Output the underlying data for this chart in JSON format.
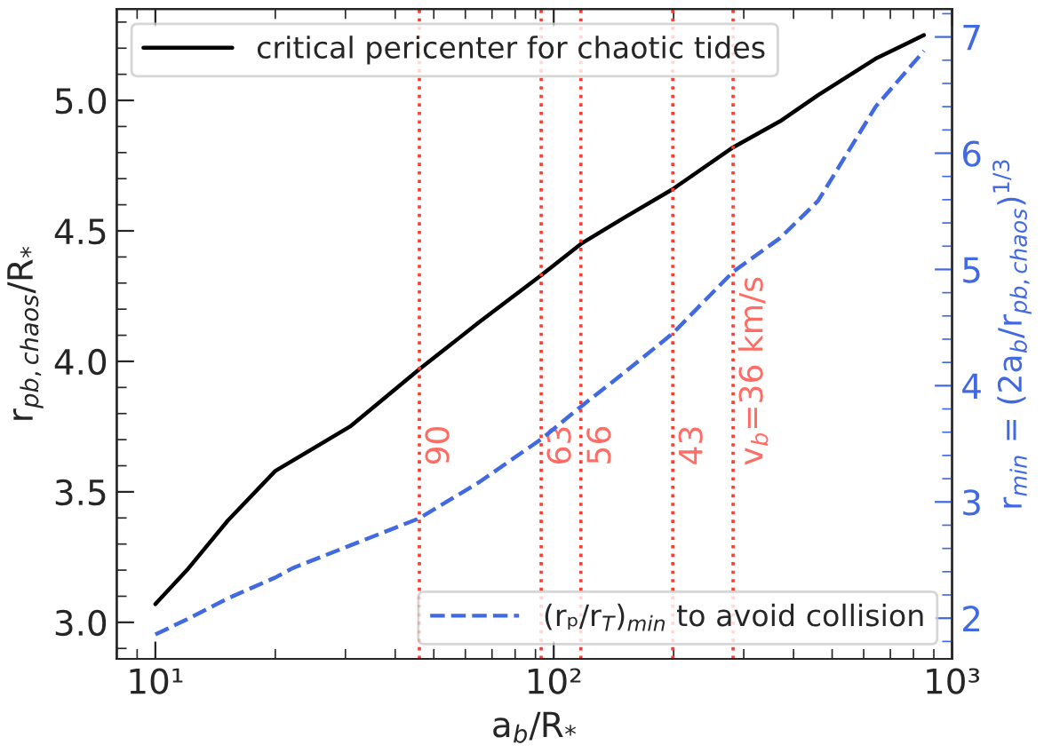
{
  "chart_data": {
    "type": "line",
    "xlabel": "a$_{b}$/R$_{*}$",
    "ylabel": "r$_{pb,chaos}$/R$_{*}$",
    "y2label": "r$_{min}$ = (2a$_{b}$/r$_{pb,chaos}$)$^{1/3}$",
    "log": "x",
    "xlim": [
      8,
      1000
    ],
    "xticks": [
      {
        "value": 10,
        "label": "10¹"
      },
      {
        "value": 100,
        "label": "10²"
      },
      {
        "value": 1000,
        "label": "10³"
      }
    ],
    "ylim": [
      2.86,
      5.35
    ],
    "yticks": [
      {
        "value": 3.0,
        "label": "3.0"
      },
      3.5,
      {
        "value": 4.0,
        "label": "4.0"
      },
      4.5,
      {
        "value": 5.0,
        "label": "5.0"
      }
    ],
    "y2lim": [
      1.65,
      7.24
    ],
    "y2ticks": [
      2,
      3,
      4,
      5,
      6,
      7
    ],
    "grid": false,
    "legend": "top left",
    "marker": "none",
    "series": [
      {
        "name": "critical pericenter for chaotic tides",
        "color": "#000000",
        "axis": "y",
        "line_style": "solid",
        "x": [
          10,
          12,
          15.2,
          20,
          30.8,
          46,
          65,
          93,
          117,
          150,
          199,
          282,
          370,
          461,
          643,
          850
        ],
        "values": [
          3.07,
          3.2,
          3.39,
          3.58,
          3.75,
          3.97,
          4.15,
          4.33,
          4.45,
          4.55,
          4.66,
          4.82,
          4.92,
          5.02,
          5.16,
          5.25
        ]
      },
      {
        "name": "(rₚ/r$_{T}$)$_{min}$ to avoid collision",
        "color": "#4169e1",
        "axis": "y2",
        "line_style": "dashed",
        "x": [
          10,
          12,
          15.2,
          20,
          22.1,
          46,
          65,
          93,
          117,
          150,
          199,
          282,
          370,
          461,
          643,
          850
        ],
        "values": [
          1.86,
          1.99,
          2.17,
          2.35,
          2.43,
          2.86,
          3.17,
          3.54,
          3.82,
          4.11,
          4.45,
          4.98,
          5.27,
          5.59,
          6.4,
          6.88
        ]
      }
    ],
    "ref_lines": [
      {
        "axis": "x",
        "value": 46,
        "color": "#ff3b30",
        "line_style": "dotted"
      },
      {
        "axis": "x",
        "value": 93,
        "color": "#ff3b30",
        "line_style": "dotted"
      },
      {
        "axis": "x",
        "value": 117,
        "color": "#ff3b30",
        "line_style": "dotted"
      },
      {
        "axis": "x",
        "value": 199,
        "color": "#ff3b30",
        "line_style": "dotted"
      },
      {
        "axis": "x",
        "value": 282,
        "color": "#ff3b30",
        "line_style": "dotted"
      }
    ],
    "annotations": [
      {
        "text": "90",
        "x": 46,
        "y": 3.6
      },
      {
        "text": "63",
        "x": 93,
        "y": 3.6
      },
      {
        "text": "56",
        "x": 117,
        "y": 3.6
      },
      {
        "text": "43",
        "x": 199,
        "y": 3.6
      },
      {
        "text": "v$_{b}$=36 km/s",
        "x": 282,
        "y": 3.6
      }
    ]
  }
}
